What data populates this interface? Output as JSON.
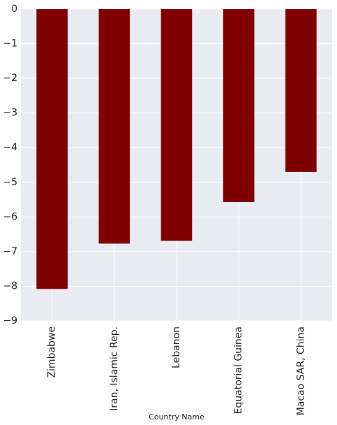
{
  "chart_data": {
    "type": "bar",
    "title": "",
    "xlabel": "Country Name",
    "ylabel": "",
    "categories": [
      "Zimbabwe",
      "Iran, Islamic Rep.",
      "Lebanon",
      "Equatorial Guinea",
      "Macao SAR, China"
    ],
    "values": [
      -8.08,
      -6.77,
      -6.69,
      -5.57,
      -4.7
    ],
    "ylim": [
      -9,
      0
    ],
    "yticks": [
      0,
      -1,
      -2,
      -3,
      -4,
      -5,
      -6,
      -7,
      -8,
      -9
    ],
    "ytick_labels": [
      "0",
      "−1",
      "−2",
      "−3",
      "−4",
      "−5",
      "−6",
      "−7",
      "−8",
      "−9"
    ],
    "grid": true,
    "legend": "none",
    "colors": {
      "bar": "#800000",
      "plot_background": "#eaeaf2",
      "grid": "#ffffff"
    }
  }
}
